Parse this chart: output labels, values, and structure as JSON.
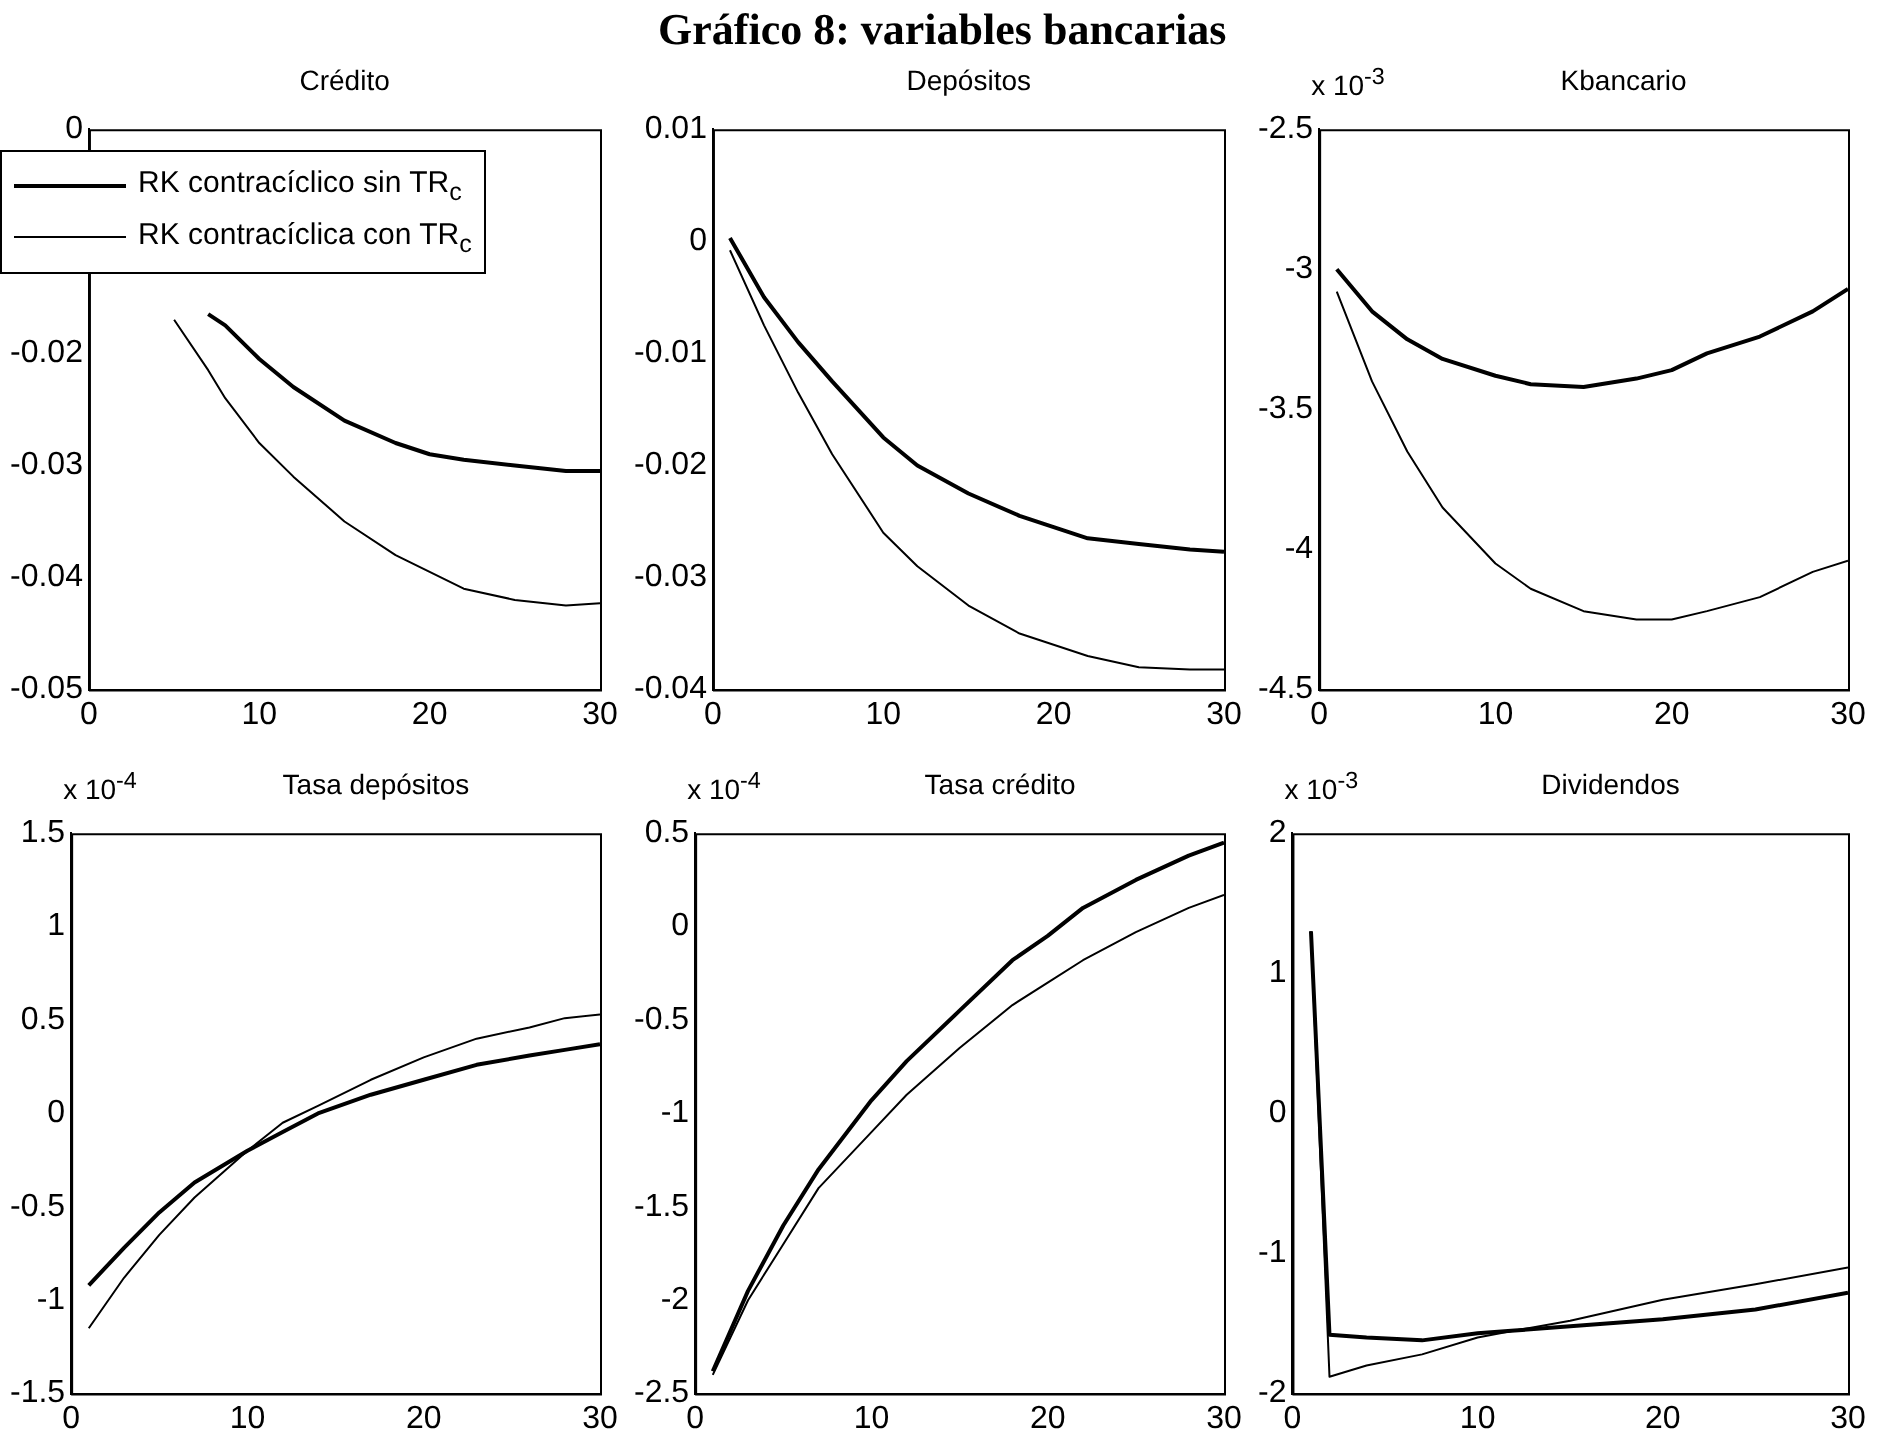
{
  "chart_data": [
    {
      "type": "line",
      "subtitle": "Crédito",
      "legend": "top left",
      "x": [
        5,
        7,
        8,
        10,
        12,
        15,
        18,
        20,
        22,
        25,
        28,
        30
      ],
      "xlim": [
        0,
        30
      ],
      "xticks": [
        0,
        10,
        20,
        30
      ],
      "ylim": [
        -0.05,
        0
      ],
      "yticks": [
        0,
        -0.02,
        -0.03,
        -0.04,
        -0.05
      ],
      "series": [
        {
          "name": "RK contracíclico sin TR$_{c}$",
          "color": "#000000",
          "values": [
            null,
            -0.0165,
            -0.0175,
            -0.0205,
            -0.023,
            -0.026,
            -0.028,
            -0.029,
            -0.0295,
            -0.03,
            -0.0305,
            -0.0305
          ]
        },
        {
          "name": "RK contracíclica con TR$_{c}$",
          "color": "#000000",
          "values": [
            -0.017,
            -0.0215,
            -0.024,
            -0.028,
            -0.031,
            -0.035,
            -0.038,
            -0.0395,
            -0.041,
            -0.042,
            -0.0425,
            -0.0423
          ]
        }
      ]
    },
    {
      "type": "line",
      "title": "Gráfico 8: variables bancarias",
      "subtitle": "Depósitos",
      "x": [
        1,
        3,
        5,
        7,
        10,
        12,
        15,
        18,
        20,
        22,
        25,
        28,
        30
      ],
      "xlim": [
        0,
        30
      ],
      "xticks": [
        0,
        10,
        20,
        30
      ],
      "ylim": [
        -0.04,
        0.01
      ],
      "yticks": [
        0.01,
        0,
        -0.01,
        -0.02,
        -0.03,
        -0.04
      ],
      "series": [
        {
          "color": "#000000",
          "values": [
            0.0003,
            -0.005,
            -0.009,
            -0.0125,
            -0.0175,
            -0.02,
            -0.0225,
            -0.0245,
            -0.0255,
            -0.0265,
            -0.027,
            -0.0275,
            -0.0277
          ]
        },
        {
          "color": "#000000",
          "values": [
            -0.0008,
            -0.0075,
            -0.0135,
            -0.019,
            -0.026,
            -0.029,
            -0.0325,
            -0.035,
            -0.036,
            -0.037,
            -0.038,
            -0.0382,
            -0.0382
          ]
        }
      ]
    },
    {
      "type": "line",
      "subtitle": "Kbancario",
      "annotations": [
        "x 10$^{-3}$"
      ],
      "x": [
        1,
        3,
        5,
        7,
        10,
        12,
        15,
        18,
        20,
        22,
        25,
        28,
        30
      ],
      "xlim": [
        0,
        30
      ],
      "xticks": [
        0,
        10,
        20,
        30
      ],
      "ylim": [
        -4.5,
        -2.5
      ],
      "yticks": [
        -2.5,
        -3,
        -3.5,
        -4,
        -4.5
      ],
      "series": [
        {
          "color": "#000000",
          "values": [
            -3.0,
            -3.15,
            -3.25,
            -3.32,
            -3.38,
            -3.41,
            -3.42,
            -3.39,
            -3.36,
            -3.3,
            -3.24,
            -3.15,
            -3.07
          ]
        },
        {
          "color": "#000000",
          "values": [
            -3.08,
            -3.4,
            -3.65,
            -3.85,
            -4.05,
            -4.14,
            -4.22,
            -4.25,
            -4.25,
            -4.22,
            -4.17,
            -4.08,
            -4.04
          ]
        }
      ]
    },
    {
      "type": "line",
      "subtitle": "Tasa depósitos",
      "annotations": [
        "x 10$^{-4}$"
      ],
      "x": [
        1,
        3,
        5,
        7,
        10,
        12,
        14,
        17,
        20,
        23,
        26,
        28,
        30
      ],
      "xlim": [
        0,
        30
      ],
      "xticks": [
        0,
        10,
        20,
        30
      ],
      "ylim": [
        -1.5,
        1.5
      ],
      "yticks": [
        1.5,
        1,
        0.5,
        0,
        -0.5,
        -1,
        -1.5
      ],
      "series": [
        {
          "color": "#000000",
          "values": [
            -0.92,
            -0.72,
            -0.53,
            -0.37,
            -0.2,
            -0.1,
            0.0,
            0.1,
            0.18,
            0.26,
            0.31,
            0.34,
            0.37
          ]
        },
        {
          "color": "#000000",
          "values": [
            -1.15,
            -0.88,
            -0.65,
            -0.45,
            -0.2,
            -0.05,
            0.04,
            0.18,
            0.3,
            0.4,
            0.46,
            0.51,
            0.53
          ]
        }
      ]
    },
    {
      "type": "line",
      "subtitle": "Tasa crédito",
      "annotations": [
        "x 10$^{-4}$"
      ],
      "x": [
        1,
        3,
        5,
        7,
        10,
        12,
        15,
        18,
        20,
        22,
        25,
        28,
        30
      ],
      "xlim": [
        0,
        30
      ],
      "xticks": [
        0,
        10,
        20,
        30
      ],
      "ylim": [
        -2.5,
        0.5
      ],
      "yticks": [
        0.5,
        0,
        -0.5,
        -1,
        -1.5,
        -2,
        -2.5
      ],
      "series": [
        {
          "color": "#000000",
          "values": [
            -2.38,
            -1.95,
            -1.6,
            -1.3,
            -0.93,
            -0.72,
            -0.45,
            -0.18,
            -0.05,
            0.1,
            0.25,
            0.38,
            0.45
          ]
        },
        {
          "color": "#000000",
          "values": [
            -2.4,
            -2.0,
            -1.7,
            -1.4,
            -1.1,
            -0.9,
            -0.65,
            -0.42,
            -0.3,
            -0.18,
            -0.03,
            0.1,
            0.17
          ]
        }
      ]
    },
    {
      "type": "line",
      "subtitle": "Dividendos",
      "annotations": [
        "x 10$^{-3}$"
      ],
      "x": [
        1,
        2,
        4,
        7,
        10,
        12,
        15,
        20,
        25,
        30
      ],
      "xlim": [
        0,
        30
      ],
      "xticks": [
        0,
        10,
        20,
        30
      ],
      "ylim": [
        -2,
        2
      ],
      "yticks": [
        2,
        1,
        0,
        -1,
        -2
      ],
      "series": [
        {
          "color": "#000000",
          "values": [
            1.3,
            -1.58,
            -1.6,
            -1.62,
            -1.57,
            -1.55,
            -1.52,
            -1.47,
            -1.4,
            -1.28
          ]
        },
        {
          "color": "#000000",
          "values": [
            1.3,
            -1.88,
            -1.8,
            -1.72,
            -1.6,
            -1.55,
            -1.48,
            -1.33,
            -1.22,
            -1.1
          ]
        }
      ]
    }
  ]
}
